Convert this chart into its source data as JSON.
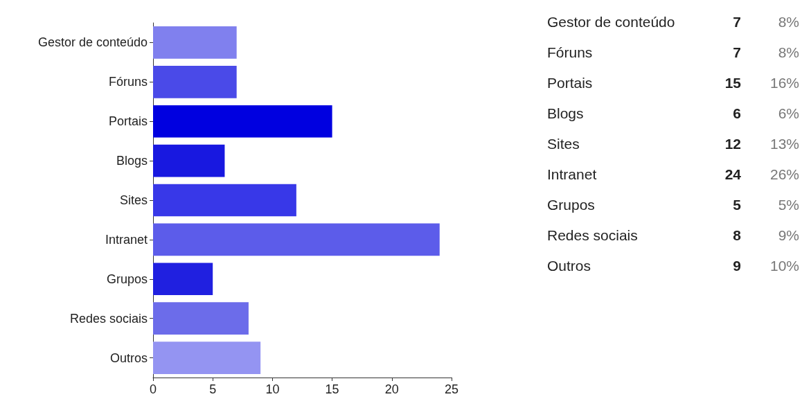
{
  "chart_data": [
    {
      "type": "bar",
      "orientation": "horizontal",
      "categories": [
        "Gestor de conteúdo",
        "Fóruns",
        "Portais",
        "Blogs",
        "Sites",
        "Intranet",
        "Grupos",
        "Redes sociais",
        "Outros"
      ],
      "values": [
        7,
        7,
        15,
        6,
        12,
        24,
        5,
        8,
        9
      ],
      "colors": [
        "#8080ee",
        "#4a4ae8",
        "#0000e0",
        "#1818e0",
        "#3838e8",
        "#5c5cea",
        "#2020e0",
        "#6c6cea",
        "#9494f2"
      ],
      "xlim": [
        0,
        25
      ],
      "xticks": [
        0,
        5,
        10,
        15,
        20,
        25
      ],
      "grid": false
    },
    {
      "type": "other",
      "categories": [
        "Gestor de conteúdo",
        "Fóruns",
        "Portais",
        "Blogs",
        "Sites",
        "Intranet",
        "Grupos",
        "Redes sociais",
        "Outros"
      ],
      "values": [
        7,
        7,
        15,
        6,
        12,
        24,
        5,
        8,
        9
      ],
      "data_labels": true,
      "annotations": [
        "8%",
        "8%",
        "16%",
        "6%",
        "13%",
        "26%",
        "5%",
        "9%",
        "10%"
      ]
    }
  ]
}
